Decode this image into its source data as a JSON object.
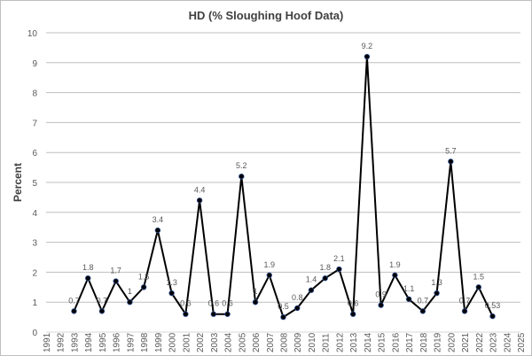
{
  "chart_data": {
    "type": "line",
    "title": "HD (% Sloughing Hoof Data)",
    "xlabel": "",
    "ylabel": "Percent",
    "ylim": [
      0,
      10
    ],
    "xlim": [
      1991,
      2025
    ],
    "y_ticks": [
      0,
      1,
      2,
      3,
      4,
      5,
      6,
      7,
      8,
      9,
      10
    ],
    "x_ticks": [
      1991,
      1992,
      1993,
      1994,
      1995,
      1996,
      1997,
      1998,
      1999,
      2000,
      2001,
      2002,
      2003,
      2004,
      2005,
      2006,
      2007,
      2008,
      2009,
      2010,
      2011,
      2012,
      2013,
      2014,
      2015,
      2016,
      2017,
      2018,
      2019,
      2020,
      2021,
      2022,
      2023,
      2024,
      2025
    ],
    "grid": "horizontal",
    "legend": "none",
    "line_color": "#000000",
    "marker_color": "#0b1f4a",
    "x": [
      1993,
      1994,
      1995,
      1996,
      1997,
      1998,
      1999,
      2000,
      2001,
      2002,
      2003,
      2004,
      2005,
      2006,
      2007,
      2008,
      2009,
      2010,
      2011,
      2012,
      2013,
      2014,
      2015,
      2016,
      2017,
      2018,
      2019,
      2020,
      2021,
      2022,
      2023
    ],
    "values": [
      0.7,
      1.8,
      0.7,
      1.7,
      1,
      1.5,
      3.4,
      1.3,
      0.6,
      4.4,
      0.6,
      0.6,
      5.2,
      1,
      1.9,
      0.5,
      0.8,
      1.4,
      1.8,
      2.1,
      0.6,
      9.2,
      0.9,
      1.9,
      1.1,
      0.7,
      1.3,
      5.7,
      0.7,
      1.5,
      0.53
    ],
    "data_labels": [
      "0.7",
      "1.8",
      "0.7",
      "1.7",
      "1",
      "1.5",
      "3.4",
      "1.3",
      "0.6",
      "4.4",
      "0.6",
      "0.6",
      "5.2",
      "1",
      "1.9",
      "0.5",
      "0.8",
      "1.4",
      "1.8",
      "2.1",
      "0.6",
      "9.2",
      "0.9",
      "1.9",
      "1.1",
      "0.7",
      "1.3",
      "5.7",
      "0.7",
      "1.5",
      "0.53"
    ]
  }
}
